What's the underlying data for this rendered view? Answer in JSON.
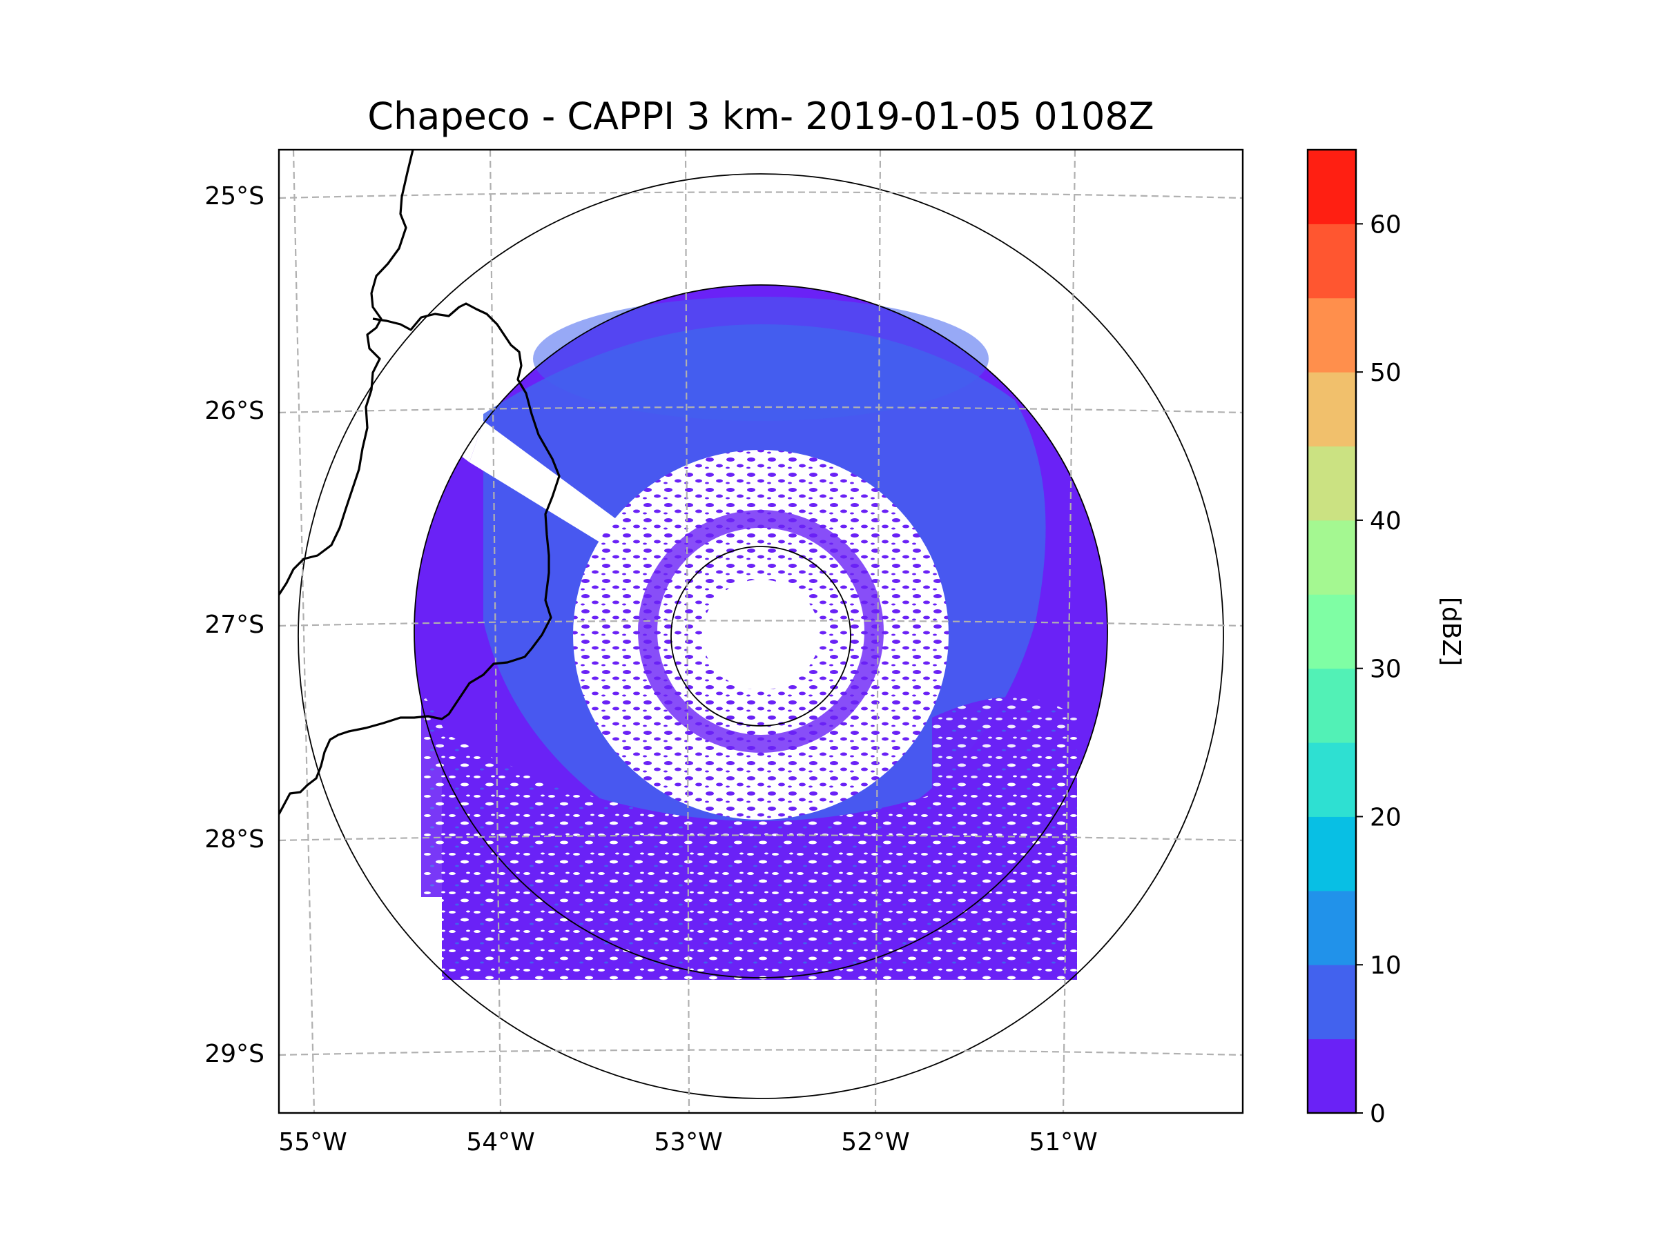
{
  "title": "Chapeco - CAPPI 3 km- 2019-01-05 0108Z",
  "latitude_ticks": [
    "25°S",
    "26°S",
    "27°S",
    "28°S",
    "29°S"
  ],
  "longitude_ticks": [
    "55°W",
    "54°W",
    "53°W",
    "52°W",
    "51°W"
  ],
  "colorbar": {
    "label": "[dBZ]",
    "tick_labels": [
      "0",
      "10",
      "20",
      "30",
      "40",
      "50",
      "60"
    ],
    "ticks": [
      0,
      10,
      20,
      30,
      40,
      50,
      60
    ],
    "min": 0,
    "max": 65,
    "bin_width": 5,
    "colors": [
      "#6a22f6",
      "#4262ee",
      "#2192ea",
      "#08bfe4",
      "#2ee0d2",
      "#52f1b6",
      "#7ffea4",
      "#a4f891",
      "#cbe282",
      "#f1c06c",
      "#ff8f4c",
      "#ff5630",
      "#ff1f12"
    ]
  },
  "map_data": {
    "radar_site": "Chapeco",
    "product": "CAPPI 3 km",
    "datetime": "2019-01-05 0108Z",
    "center": {
      "lon": -52.62,
      "lat": -27.03
    },
    "lon_range": [
      -55.2,
      -50.1
    ],
    "lat_range": [
      -29.3,
      -24.8
    ],
    "range_rings_deg": [
      0.48,
      1.85,
      2.45
    ]
  },
  "colors": {
    "echo_dominant": "#6a22f6",
    "echo_secondary": "#4262ee",
    "gridline": "#b0b0b0",
    "border": "#000000"
  }
}
